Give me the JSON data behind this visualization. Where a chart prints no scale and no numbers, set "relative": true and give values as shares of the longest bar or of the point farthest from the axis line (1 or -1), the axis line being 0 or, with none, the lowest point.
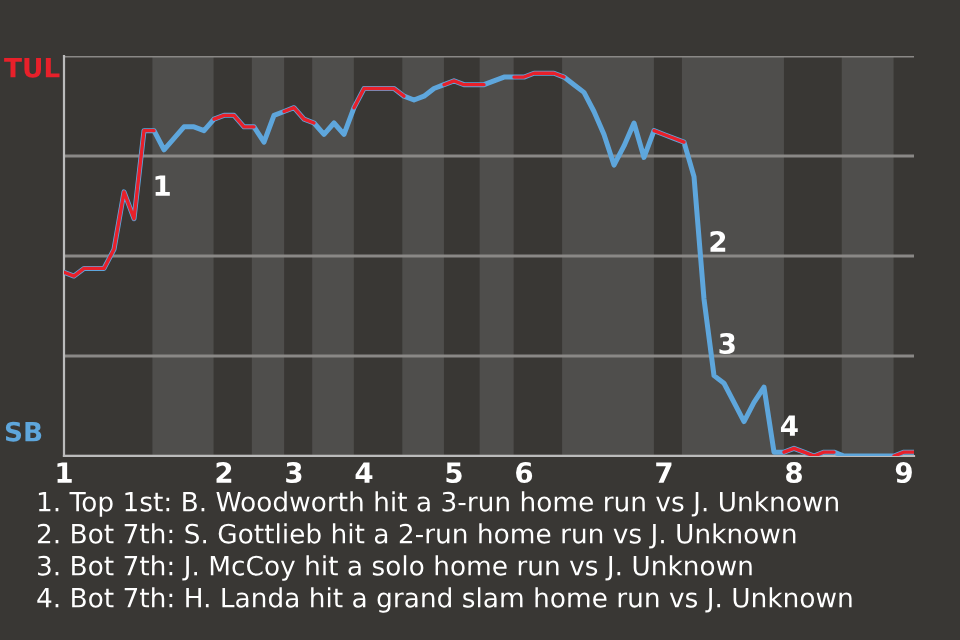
{
  "chart_data": {
    "type": "line",
    "relative": true,
    "categories": [
      "1",
      null,
      null,
      null,
      null,
      null,
      null,
      null,
      null,
      null,
      null,
      null,
      null,
      null,
      null,
      null,
      "2",
      null,
      null,
      null,
      null,
      null,
      null,
      "3",
      null,
      null,
      null,
      null,
      null,
      null,
      "4",
      null,
      null,
      null,
      null,
      null,
      null,
      null,
      null,
      "5",
      null,
      null,
      null,
      null,
      null,
      null,
      "6",
      null,
      null,
      null,
      null,
      null,
      null,
      null,
      null,
      null,
      null,
      null,
      null,
      null,
      "7",
      null,
      null,
      null,
      null,
      null,
      null,
      null,
      null,
      null,
      null,
      null,
      null,
      "8",
      null,
      null,
      null,
      null,
      null,
      null,
      null,
      null,
      null,
      null,
      "9",
      null
    ],
    "grid": "y",
    "marker": "none",
    "line_style": "solid",
    "series": [
      {
        "color": "#5ea6dc",
        "values": [
          0.48,
          0.47,
          0.49,
          0.49,
          0.49,
          0.54,
          0.69,
          0.62,
          0.85,
          0.85,
          0.8,
          0.83,
          0.86,
          0.86,
          0.85,
          0.88,
          0.89,
          0.89,
          0.86,
          0.86,
          0.82,
          0.89,
          0.9,
          0.91,
          0.88,
          0.87,
          0.84,
          0.87,
          0.84,
          0.91,
          0.96,
          0.96,
          0.96,
          0.96,
          0.94,
          0.93,
          0.94,
          0.96,
          0.97,
          0.98,
          0.97,
          0.97,
          0.97,
          0.98,
          0.99,
          0.99,
          0.99,
          1,
          1,
          1,
          0.99,
          0.97,
          0.95,
          0.9,
          0.84,
          0.76,
          0.81,
          0.87,
          0.78,
          0.85,
          0.84,
          0.83,
          0.82,
          0.73,
          0.41,
          0.21,
          0.19,
          0.14,
          0.09,
          0.14,
          0.18,
          0.01,
          0.01,
          0.02,
          0.01,
          0,
          0.01,
          0.01,
          0,
          0,
          0,
          0,
          0,
          0,
          0.01,
          0.01
        ],
        "colors": [
          "#e8202a",
          "#e8202a",
          "#e8202a",
          "#e8202a",
          "#e8202a",
          "#e8202a",
          "#e8202a",
          "#e8202a",
          "#e8202a",
          "#5ea6dc",
          "#5ea6dc",
          "#5ea6dc",
          "#5ea6dc",
          "#5ea6dc",
          "#5ea6dc",
          "#e8202a",
          "#e8202a",
          "#e8202a",
          "#e8202a",
          "#5ea6dc",
          "#5ea6dc",
          "#5ea6dc",
          "#e8202a",
          "#e8202a",
          "#e8202a",
          "#5ea6dc",
          "#5ea6dc",
          "#5ea6dc",
          "#5ea6dc",
          "#e8202a",
          "#e8202a",
          "#e8202a",
          "#e8202a",
          "#e8202a",
          "#5ea6dc",
          "#5ea6dc",
          "#5ea6dc",
          "#5ea6dc",
          "#e8202a",
          "#e8202a",
          "#e8202a",
          "#e8202a",
          "#5ea6dc",
          "#5ea6dc",
          "#5ea6dc",
          "#e8202a",
          "#e8202a",
          "#e8202a",
          "#e8202a",
          "#e8202a",
          "#5ea6dc",
          "#5ea6dc",
          "#5ea6dc",
          "#5ea6dc",
          "#5ea6dc",
          "#5ea6dc",
          "#5ea6dc",
          "#5ea6dc",
          "#5ea6dc",
          "#e8202a",
          "#e8202a",
          "#e8202a",
          "#5ea6dc",
          "#5ea6dc",
          "#5ea6dc",
          "#5ea6dc",
          "#5ea6dc",
          "#5ea6dc",
          "#5ea6dc",
          "#5ea6dc",
          "#5ea6dc",
          "#5ea6dc",
          "#e8202a",
          "#e8202a",
          "#e8202a",
          "#e8202a",
          "#e8202a",
          "#5ea6dc",
          "#5ea6dc",
          "#5ea6dc",
          "#5ea6dc",
          "#5ea6dc",
          "#5ea6dc",
          "#e8202a",
          "#e8202a",
          "#e8202a"
        ]
      }
    ],
    "annotations": [
      "TUL",
      "SB",
      "1",
      "2",
      "3",
      "4",
      "1. Top 1st: B. Woodworth hit a 3-run home run vs J. Unknown",
      "2. Bot 7th: S. Gottlieb hit a 2-run home run vs J. Unknown",
      "3. Bot 7th: J. McCoy hit a solo home run vs J. Unknown",
      "4. Bot 7th: H. Landa hit a grand slam home run vs J. Unknown"
    ]
  }
}
